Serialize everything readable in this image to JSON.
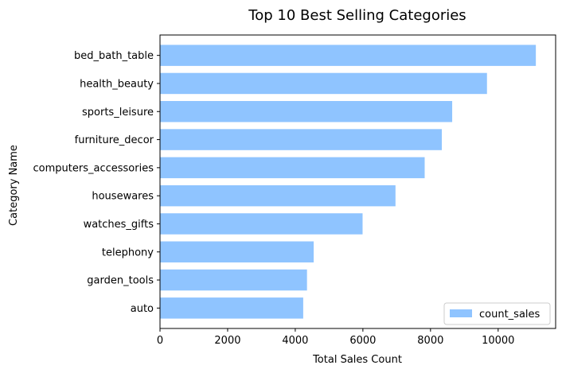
{
  "chart_data": {
    "type": "bar",
    "orientation": "horizontal",
    "title": "Top 10 Best Selling Categories",
    "xlabel": "Total Sales Count",
    "ylabel": "Category Name",
    "categories": [
      "bed_bath_table",
      "health_beauty",
      "sports_leisure",
      "furniture_decor",
      "computers_accessories",
      "housewares",
      "watches_gifts",
      "telephony",
      "garden_tools",
      "auto"
    ],
    "series": [
      {
        "name": "count_sales",
        "values": [
          11115,
          9670,
          8641,
          8334,
          7827,
          6964,
          5991,
          4545,
          4347,
          4235
        ],
        "color": "#8fc4ff"
      }
    ],
    "xlim": [
      0,
      11700
    ],
    "xticks": [
      0,
      2000,
      4000,
      6000,
      8000,
      10000
    ],
    "grid": false,
    "legend": "bottom-right"
  }
}
